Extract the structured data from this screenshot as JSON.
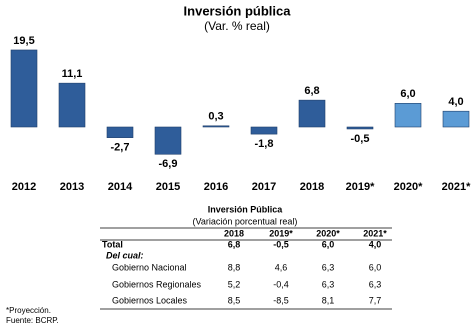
{
  "chart_data": {
    "type": "bar",
    "title": "Inversión pública",
    "subtitle": "(Var. % real)",
    "categories": [
      "2012",
      "2013",
      "2014",
      "2015",
      "2016",
      "2017",
      "2018",
      "2019*",
      "2020*",
      "2021*"
    ],
    "values": [
      19.5,
      11.1,
      -2.7,
      -6.9,
      0.3,
      -1.8,
      6.8,
      -0.5,
      6.0,
      4.0
    ],
    "value_labels": [
      "19,5",
      "11,1",
      "-2,7",
      "-6,9",
      "0,3",
      "-1,8",
      "6,8",
      "-0,5",
      "6,0",
      "4,0"
    ],
    "colors": [
      "#2f5d9a",
      "#2f5d9a",
      "#2f5d9a",
      "#2f5d9a",
      "#2f5d9a",
      "#2f5d9a",
      "#2f5d9a",
      "#2f5d9a",
      "#5b9bd5",
      "#5b9bd5"
    ]
  },
  "table": {
    "title": "Inversión Pública",
    "subtitle": "(Variación porcentual real)",
    "header": [
      "2018",
      "2019*",
      "2020*",
      "2021*"
    ],
    "rows": [
      [
        "Total",
        "6,8",
        "-0,5",
        "6,0",
        "4,0"
      ],
      [
        "Del cual:"
      ],
      [
        "Gobierno Nacional",
        "8,8",
        "4,6",
        "6,3",
        "6,0"
      ],
      [
        "Gobiernos Regionales",
        "5,2",
        "-0,4",
        "6,3",
        "6,3"
      ],
      [
        "Gobiernos Locales",
        "8,5",
        "-8,5",
        "8,1",
        "7,7"
      ]
    ]
  },
  "footnotes": [
    "*Proyección.",
    "Fuente: BCRP."
  ]
}
